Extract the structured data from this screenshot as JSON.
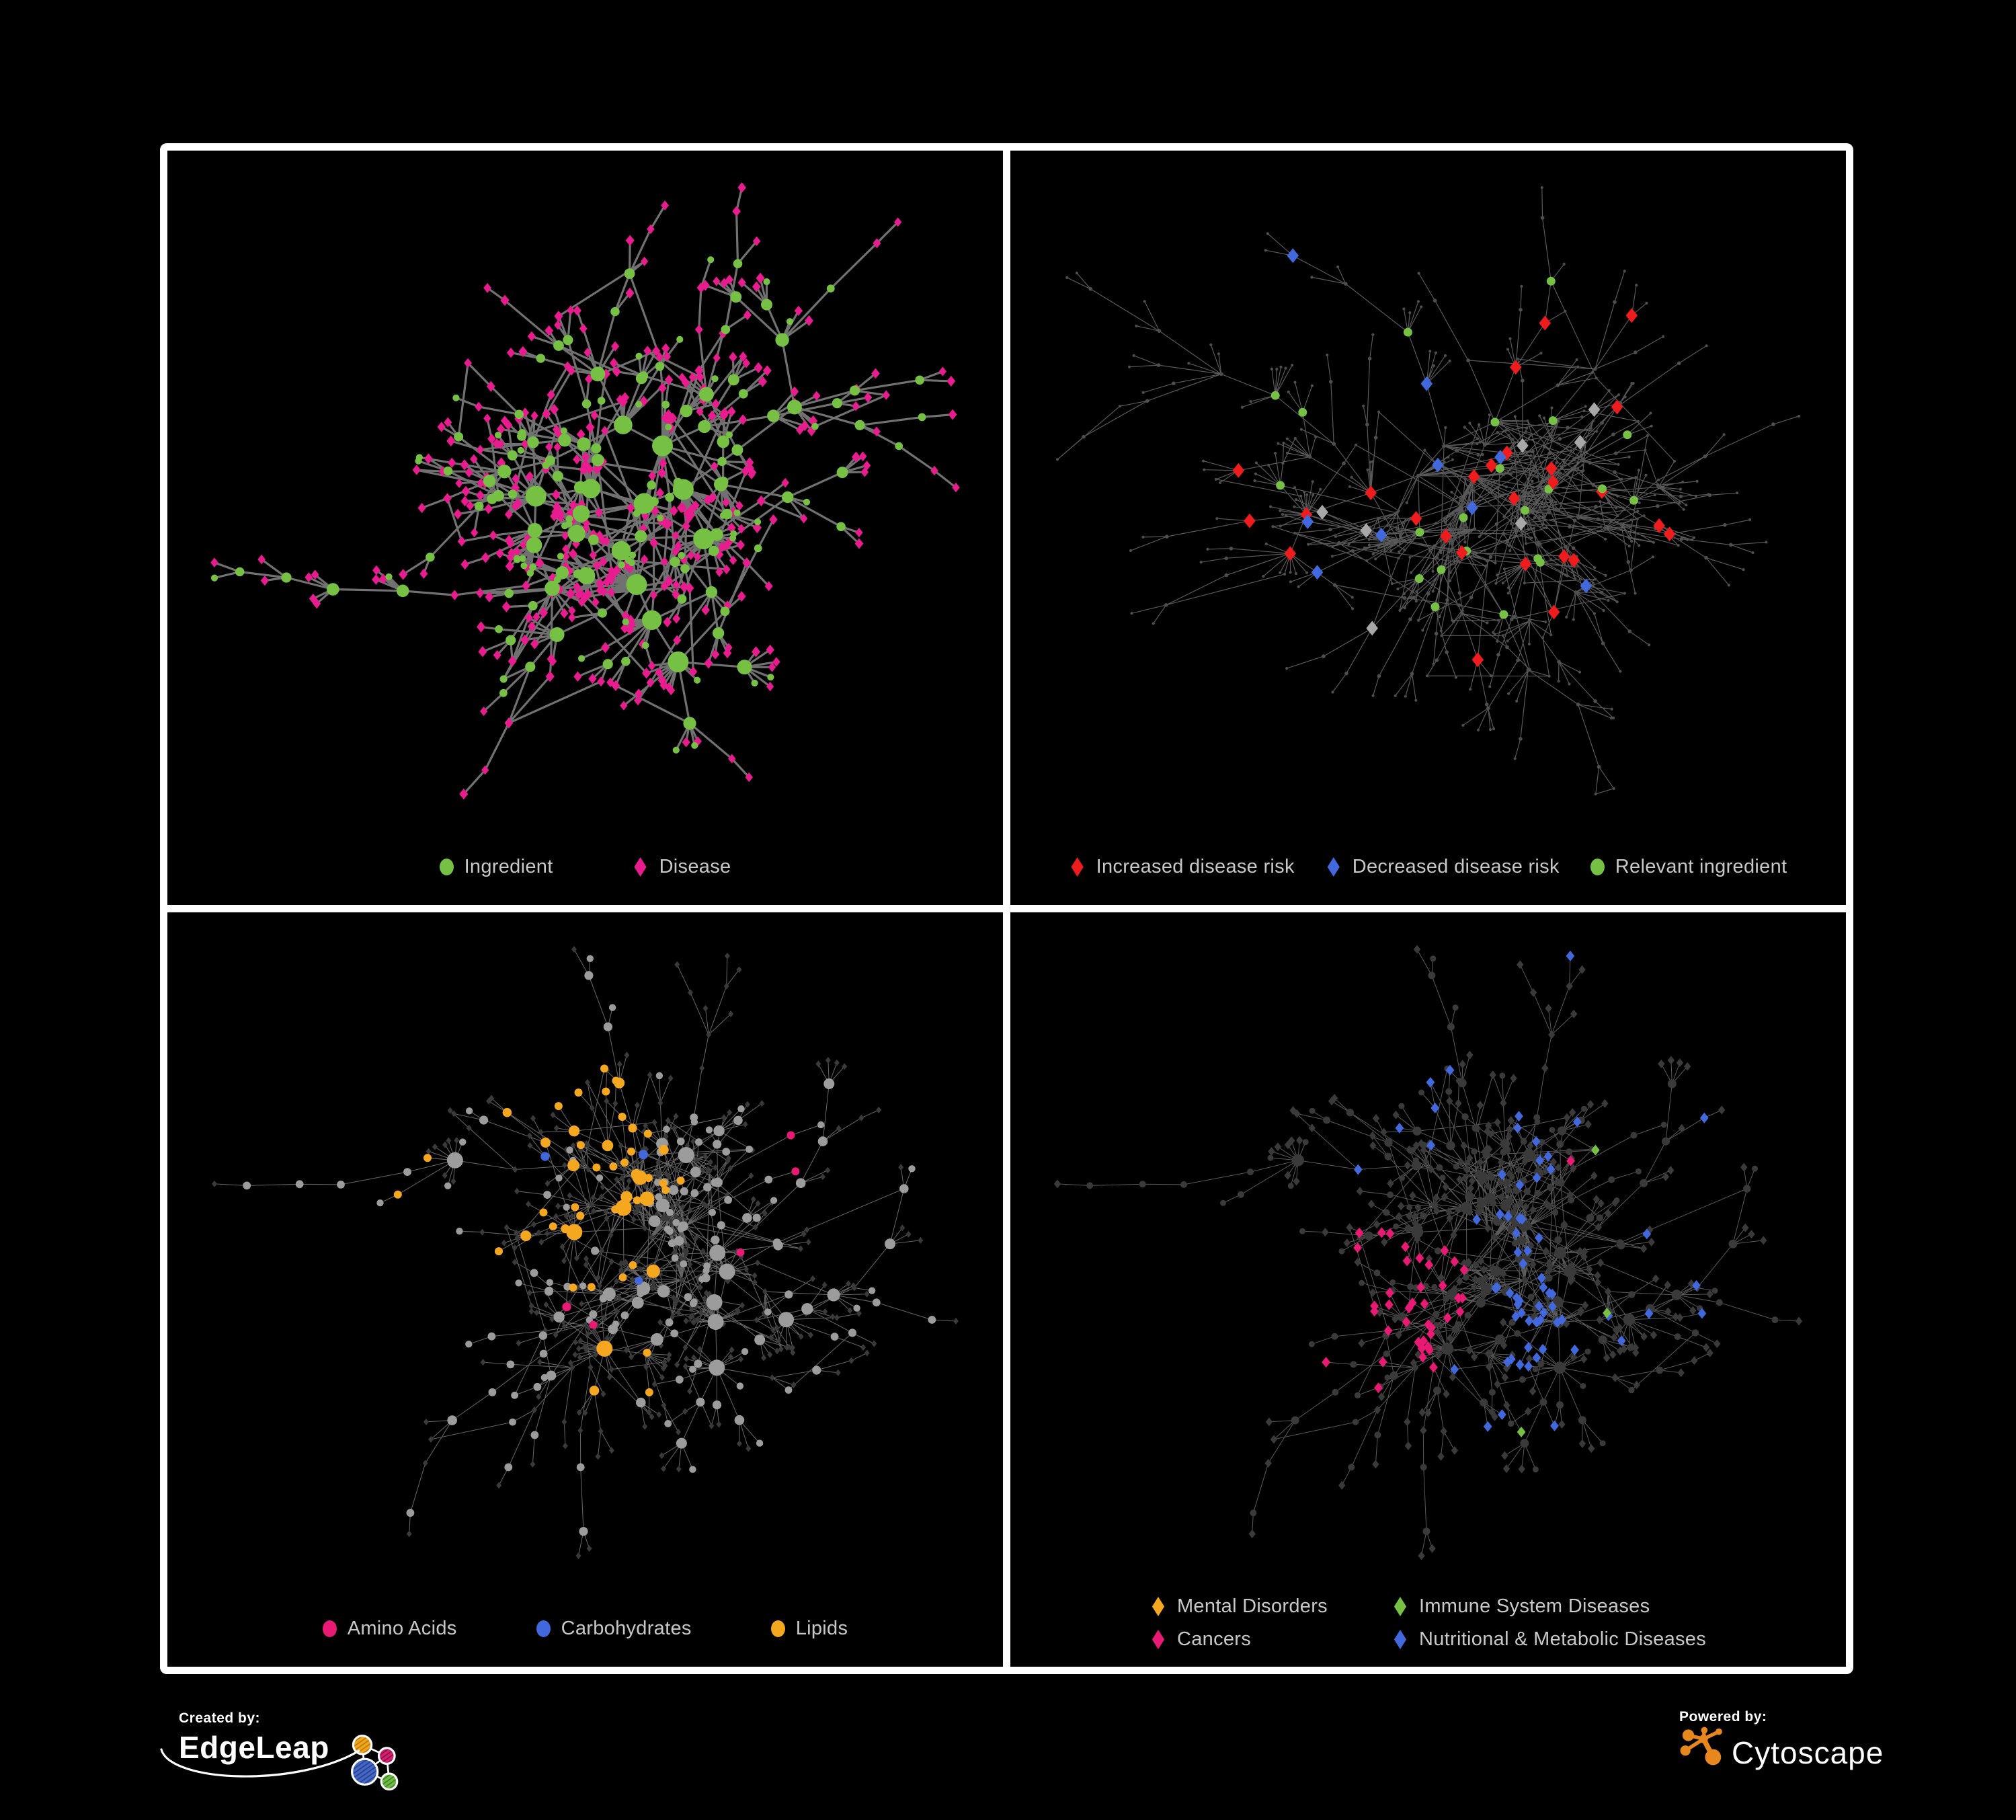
{
  "colors": {
    "background": "#000000",
    "frame": "#ffffff",
    "legend_text": "#c8c8c8",
    "green": "#76c043",
    "pink": "#e81c8e",
    "red": "#ee1c1c",
    "blue": "#4169dd",
    "gray": "#a8a8a8",
    "orange": "#f5a81f",
    "magenta": "#e81a74",
    "dim": "#3a3a3a",
    "node_gray": "#9c9c9c",
    "tiny_gray": "#4f4f4f",
    "edge_p1": "#7b7b7b",
    "edge_p2": "#696969",
    "edge_p3": "#8f8f8f",
    "edge_p4": "#717171",
    "edgeleap_orange": "#f2a71b",
    "edgeleap_pink": "#d2216e",
    "edgeleap_blue": "#4368c8",
    "edgeleap_green": "#6cbe45",
    "cytoscape_orange": "#e8871d"
  },
  "panels": [
    {
      "name": "ingredient-disease-network",
      "legend": [
        {
          "shape": "circle",
          "color": "green",
          "label": "Ingredient"
        },
        {
          "shape": "diamond",
          "color": "pink",
          "label": "Disease"
        }
      ],
      "network": {
        "seed": 7,
        "nodes": 560,
        "extra_edges": 100,
        "style": "p1"
      }
    },
    {
      "name": "disease-risk-network",
      "legend": [
        {
          "shape": "diamond",
          "color": "red",
          "label": "Increased disease risk"
        },
        {
          "shape": "diamond",
          "color": "blue",
          "label": "Decreased disease risk"
        },
        {
          "shape": "circle",
          "color": "green",
          "label": "Relevant ingredient"
        }
      ],
      "network": {
        "seed": 12,
        "nodes": 660,
        "extra_edges": 130,
        "style": "p2"
      }
    },
    {
      "name": "nutrient-class-network",
      "legend": [
        {
          "shape": "circle",
          "color": "magenta",
          "label": "Amino Acids"
        },
        {
          "shape": "circle",
          "color": "blue",
          "label": "Carbohydrates"
        },
        {
          "shape": "circle",
          "color": "orange",
          "label": "Lipids"
        }
      ],
      "network": {
        "seed": 23,
        "nodes": 640,
        "extra_edges": 120,
        "style": "p3"
      }
    },
    {
      "name": "disease-class-network",
      "legend": [
        {
          "shape": "diamond",
          "color": "orange",
          "label": "Mental Disorders"
        },
        {
          "shape": "diamond",
          "color": "green",
          "label": "Immune System Diseases"
        },
        {
          "shape": "diamond",
          "color": "magenta",
          "label": "Cancers"
        },
        {
          "shape": "diamond",
          "color": "blue",
          "label": "Nutritional & Metabolic Diseases"
        }
      ],
      "network": {
        "seed": 23,
        "nodes": 640,
        "extra_edges": 120,
        "style": "p4"
      }
    }
  ],
  "footer": {
    "created_by": "Created by:",
    "edgeleap": "EdgeLeap",
    "powered_by": "Powered by:",
    "cytoscape": "Cytoscape"
  }
}
